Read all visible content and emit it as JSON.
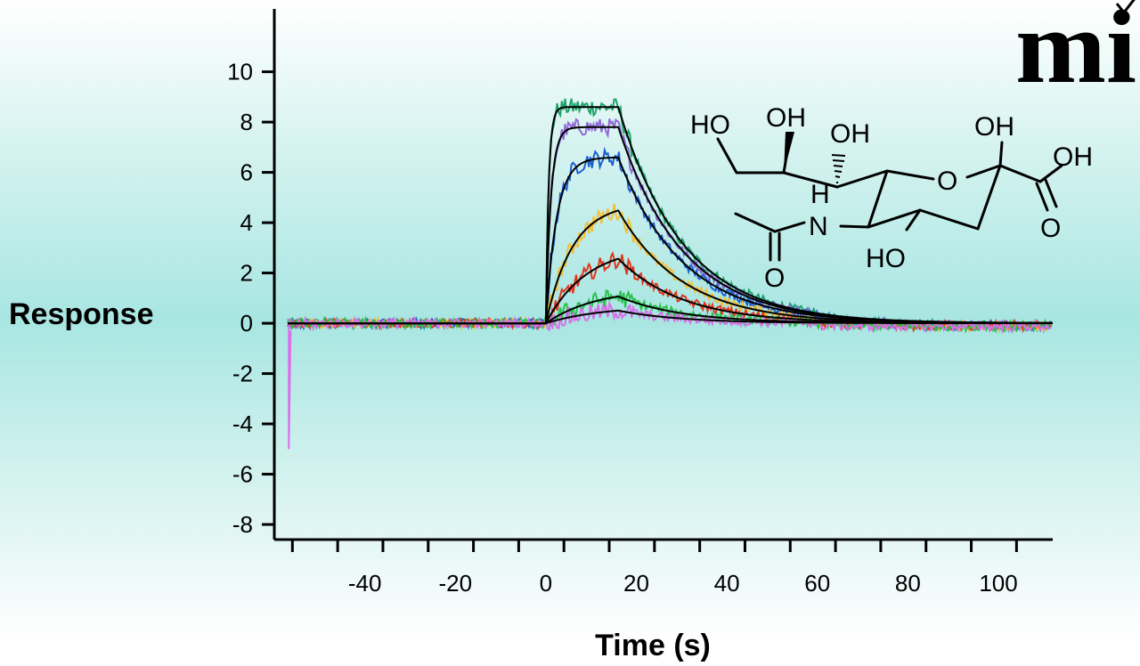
{
  "chart_data": {
    "type": "line",
    "title": "",
    "xlabel": "Time (s)",
    "ylabel": "Response",
    "xlim": [
      -60,
      112
    ],
    "ylim": [
      -8.6,
      12.5
    ],
    "xticks": [
      -40,
      -20,
      0,
      20,
      40,
      60,
      80,
      100
    ],
    "yticks": [
      -8,
      -6,
      -4,
      -2,
      0,
      2,
      4,
      6,
      8,
      10
    ],
    "grid": false,
    "legend": "none",
    "injection_start": 0,
    "injection_end": 16,
    "baseline_start": -57,
    "x_end": 112,
    "dissociation_rate": 0.07,
    "series": [
      {
        "color": "#1fa36b",
        "plateau": 8.6,
        "kon": 1.6
      },
      {
        "color": "#8e6bd6",
        "plateau": 7.8,
        "kon": 0.9
      },
      {
        "color": "#1e5fd0",
        "plateau": 6.6,
        "kon": 0.42
      },
      {
        "color": "#f2c13a",
        "plateau": 4.8,
        "kon": 0.17
      },
      {
        "color": "#e0361f",
        "plateau": 3.1,
        "kon": 0.11
      },
      {
        "color": "#29c24a",
        "plateau": 1.4,
        "kon": 0.09
      },
      {
        "color": "#d870e8",
        "plateau": 0.7,
        "kon": 0.08
      }
    ]
  },
  "molecule": {
    "labels": {
      "ho_left": "HO",
      "oh_top": "OH",
      "oh_mid": "OH",
      "oh_ring": "OH",
      "oh_acid": "OH",
      "ring_o": "O",
      "acid_o": "O",
      "amide_o": "O",
      "nh_h": "H",
      "nh_n": "N",
      "ho_bottom": "HO"
    }
  },
  "logo": {
    "text": "mi"
  }
}
